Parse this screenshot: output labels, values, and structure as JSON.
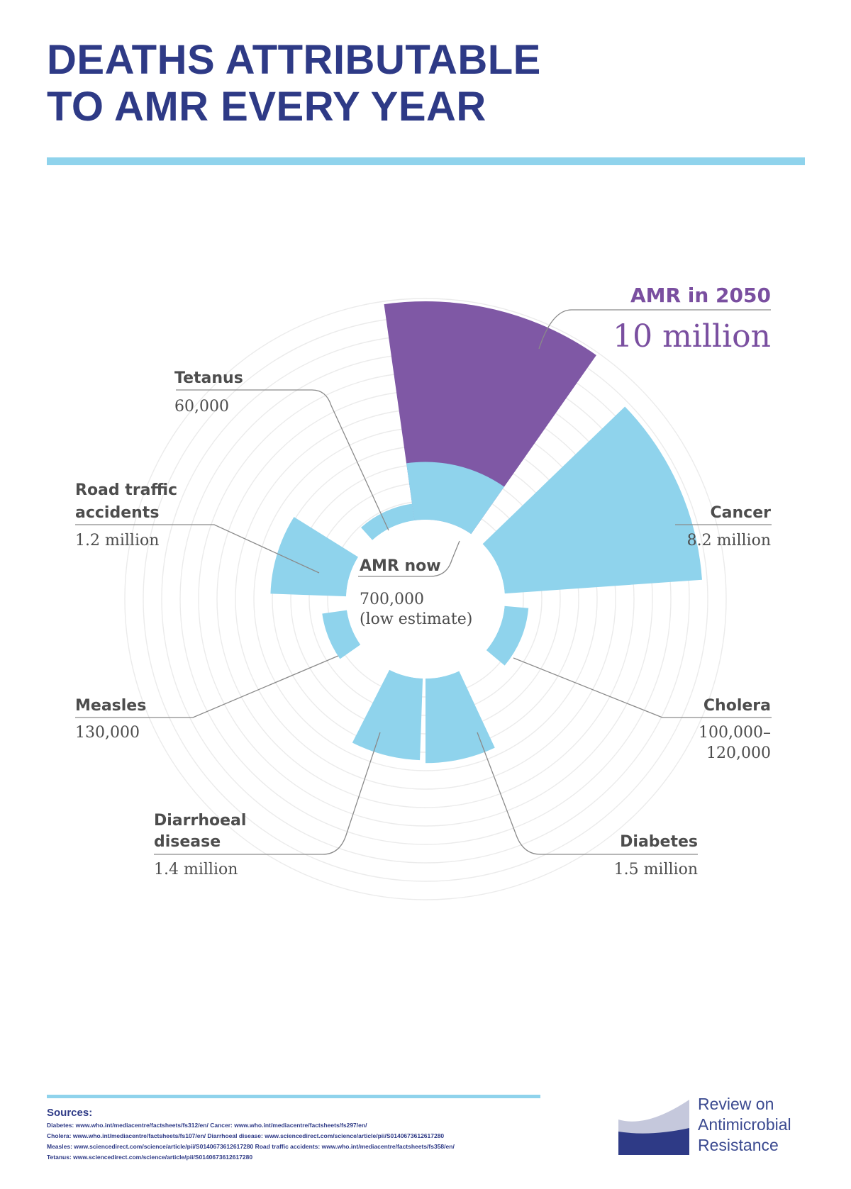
{
  "header": {
    "title_line1": "DEATHS ATTRIBUTABLE",
    "title_line2": "TO AMR EVERY YEAR"
  },
  "colors": {
    "title": "#2e3a86",
    "accent_blue": "#8fd3ec",
    "amr_purple": "#7f58a5",
    "label_text": "#4d4d4d"
  },
  "chart_data": {
    "type": "radial-bar",
    "title": "DEATHS ATTRIBUTABLE TO AMR EVERY YEAR",
    "unit": "deaths per year",
    "grid": true,
    "categories": [
      {
        "name": "AMR in 2050",
        "value_label": "10 million",
        "value": 10000000,
        "color": "#7f58a5"
      },
      {
        "name": "Cancer",
        "value_label": "8.2 million",
        "value": 8200000,
        "color": "#8fd3ec"
      },
      {
        "name": "Cholera",
        "value_label_lines": [
          "100,000–",
          "120,000"
        ],
        "value": 120000,
        "color": "#8fd3ec"
      },
      {
        "name": "Diabetes",
        "value_label": "1.5 million",
        "value": 1500000,
        "color": "#8fd3ec"
      },
      {
        "name_lines": [
          "Diarrhoeal",
          "disease"
        ],
        "value_label": "1.4 million",
        "value": 1400000,
        "color": "#8fd3ec"
      },
      {
        "name": "Measles",
        "value_label": "130,000",
        "value": 130000,
        "color": "#8fd3ec"
      },
      {
        "name_lines": [
          "Road traffic",
          "accidents"
        ],
        "value_label": "1.2 million",
        "value": 1200000,
        "color": "#8fd3ec"
      },
      {
        "name": "Tetanus",
        "value_label": "60,000",
        "value": 60000,
        "color": "#8fd3ec"
      }
    ],
    "amr_now": {
      "name": "AMR now",
      "value_label_lines": [
        "700,000",
        "(low estimate)"
      ],
      "value": 700000,
      "color": "#8fd3ec"
    }
  },
  "sources": {
    "title": "Sources:",
    "lines": [
      "Diabetes: www.who.int/mediacentre/factsheets/fs312/en/    Cancer: www.who.int/mediacentre/factsheets/fs297/en/",
      "Cholera: www.who.int/mediacentre/factsheets/fs107/en/    Diarrhoeal disease: www.sciencedirect.com/science/article/pii/S0140673612617280",
      "Measles: www.sciencedirect.com/science/article/pii/S0140673612617280    Road traffic accidents: www.who.int/mediacentre/factsheets/fs358/en/",
      "Tetanus: www.sciencedirect.com/science/article/pii/S0140673612617280"
    ]
  },
  "logo": {
    "line1": "Review on",
    "line2": "Antimicrobial",
    "line3": "Resistance"
  }
}
